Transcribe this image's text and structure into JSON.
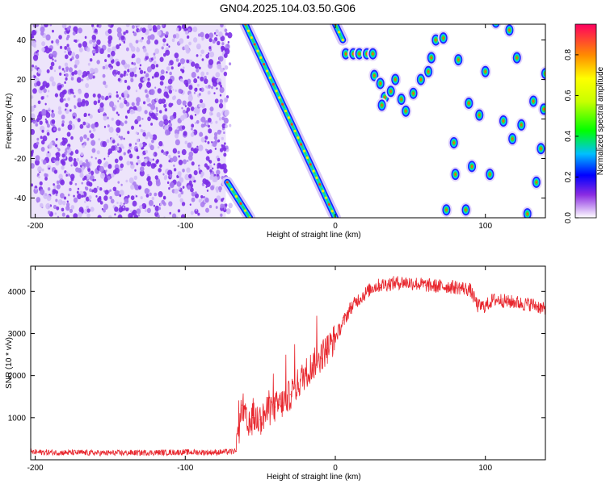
{
  "title": "GN04.2025.104.03.50.G06",
  "chart_data": [
    {
      "type": "heatmap",
      "xlabel": "Height of straight line (km)",
      "ylabel": "Frequency (Hz)",
      "xlim": [
        -203,
        140
      ],
      "ylim": [
        -50,
        48
      ],
      "xticks": [
        -200,
        -100,
        0,
        100
      ],
      "yticks": [
        -40,
        -20,
        0,
        20,
        40
      ],
      "colorbar": {
        "label": "Normalized spectral amplitude",
        "range": [
          0,
          0.95
        ],
        "ticks": [
          0.0,
          0.2,
          0.4,
          0.6,
          0.8
        ]
      },
      "noise_region": {
        "x": [
          -203,
          -73
        ],
        "level": 0.1
      },
      "streak_segments": [
        {
          "from": [
            -60,
            48
          ],
          "to": [
            0,
            -50
          ]
        },
        {
          "from": [
            -72,
            -32
          ],
          "to": [
            -57,
            -50
          ]
        },
        {
          "from": [
            0,
            48
          ],
          "to": [
            5,
            40
          ]
        }
      ],
      "blobs": [
        [
          7,
          33
        ],
        [
          12,
          33
        ],
        [
          16,
          33
        ],
        [
          21,
          33
        ],
        [
          25,
          33
        ],
        [
          26,
          22
        ],
        [
          30,
          18
        ],
        [
          33,
          11
        ],
        [
          31,
          7
        ],
        [
          37,
          14
        ],
        [
          40,
          20
        ],
        [
          44,
          10
        ],
        [
          47,
          4
        ],
        [
          52,
          13
        ],
        [
          57,
          20
        ],
        [
          62,
          24
        ],
        [
          64,
          31
        ],
        [
          67,
          40
        ],
        [
          72,
          41
        ],
        [
          82,
          30
        ],
        [
          74,
          -46
        ],
        [
          79,
          -12
        ],
        [
          80,
          -28
        ],
        [
          87,
          -46
        ],
        [
          89,
          8
        ],
        [
          91,
          -24
        ],
        [
          96,
          2
        ],
        [
          100,
          24
        ],
        [
          103,
          -28
        ],
        [
          107,
          49
        ],
        [
          112,
          -1
        ],
        [
          116,
          45
        ],
        [
          118,
          -10
        ],
        [
          121,
          31
        ],
        [
          124,
          -3
        ],
        [
          128,
          -48
        ],
        [
          132,
          9
        ],
        [
          134,
          -32
        ],
        [
          137,
          -15
        ],
        [
          139,
          5
        ],
        [
          140,
          23
        ]
      ]
    },
    {
      "type": "line",
      "xlabel": "Height of straight line (km)",
      "ylabel": "SNR (10 * v/v)",
      "xlim": [
        -203,
        140
      ],
      "ylim": [
        0,
        4600
      ],
      "xticks": [
        -200,
        -100,
        0,
        100
      ],
      "yticks": [
        1000,
        2000,
        3000,
        4000
      ],
      "color": "#e8272e",
      "series": [
        {
          "x": [
            -203,
            -180,
            -150,
            -120,
            -100,
            -80,
            -66,
            -62,
            -58,
            -55,
            -50,
            -45,
            -40,
            -35,
            -30,
            -25,
            -20,
            -15,
            -10,
            -5,
            0,
            5,
            10,
            15,
            20,
            25,
            30,
            35,
            40,
            45,
            50,
            55,
            60,
            65,
            70,
            75,
            80,
            85,
            90,
            95,
            100,
            105,
            110,
            115,
            120,
            125,
            130,
            135,
            140
          ],
          "y": [
            180,
            170,
            160,
            170,
            180,
            175,
            200,
            1300,
            700,
            1000,
            950,
            1150,
            1250,
            1350,
            1550,
            1800,
            2050,
            2250,
            2450,
            2650,
            2900,
            3250,
            3600,
            3800,
            3950,
            4100,
            4150,
            4180,
            4200,
            4220,
            4200,
            4180,
            4150,
            4130,
            4120,
            4120,
            4100,
            4080,
            4030,
            3650,
            3650,
            3800,
            3800,
            3750,
            3750,
            3700,
            3700,
            3650,
            3550
          ]
        }
      ]
    }
  ]
}
